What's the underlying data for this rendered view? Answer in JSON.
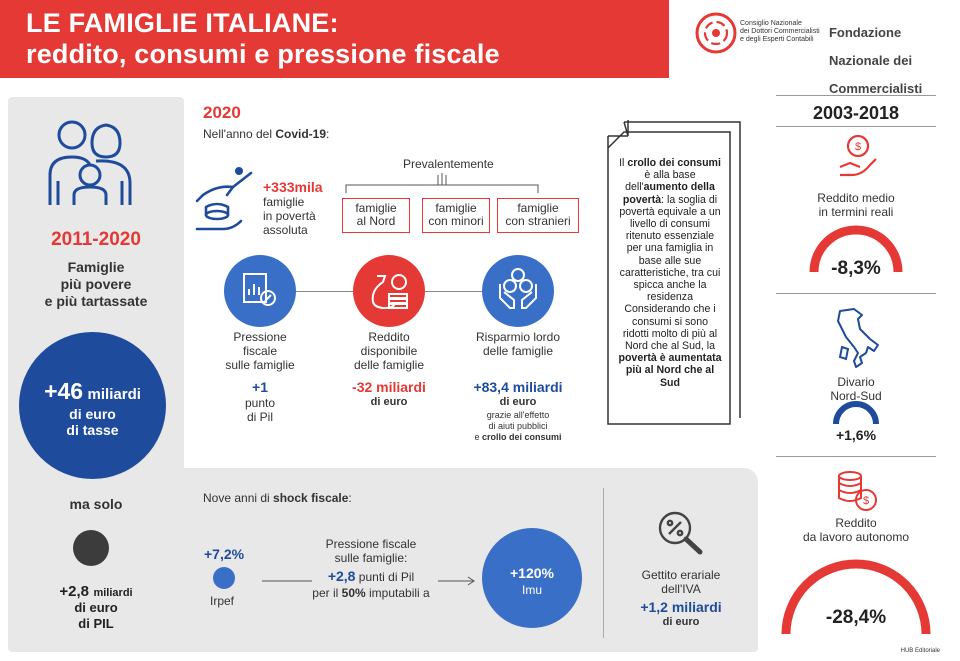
{
  "header": {
    "title_line1": "LE FAMIGLIE ITALIANE:",
    "title_line2": "reddito, consumi e pressione fiscale",
    "cndc_text": "Consiglio Nazionale\ndei Dottori Commercialisti\ne degli Esperti Contabili",
    "fnc_line1": "Fondazione",
    "fnc_line2": "Nazionale dei",
    "fnc_line3": "Commercialisti"
  },
  "left": {
    "period": "2011-2020",
    "subtitle": "Famiglie\npiù povere\ne più tartassate",
    "big_value": "+46",
    "big_unit": "miliardi",
    "big_desc": "di euro\ndi tasse",
    "ma_solo": "ma solo",
    "small_value": "+2,8",
    "small_unit": "miliardi",
    "small_desc": "di euro\ndi PIL"
  },
  "covid": {
    "year": "2020",
    "intro_prefix": "Nell'anno del ",
    "intro_bold": "Covid-19",
    "intro_suffix": ":",
    "poverty_value": "+333mila",
    "poverty_desc": "famiglie\nin povertà\nassoluta",
    "prevalentemente": "Prevalentemente",
    "categories": [
      "famiglie\nal Nord",
      "famiglie\ncon minori",
      "famiglie\ncon stranieri"
    ],
    "metrics": [
      {
        "label": "Pressione\nfiscale\nsulle famiglie",
        "value": "+1",
        "unit": "punto\ndi Pil"
      },
      {
        "label": "Reddito\ndisponibile\ndelle famiglie",
        "value": "-32 miliardi",
        "unit": "di euro"
      },
      {
        "label": "Risparmio lordo\ndelle famiglie",
        "value": "+83,4 miliardi",
        "unit": "di euro",
        "note1": "grazie all'effetto",
        "note2": "di aiuti pubblici",
        "note3_prefix": "e ",
        "note3_bold": "crollo dei consumi"
      }
    ]
  },
  "doc": {
    "t1": "Il ",
    "b1": "crollo dei consumi",
    "t2": " è alla base dell'",
    "b2": "aumento della povertà",
    "t3": ": la soglia di povertà equivale a un livello di consumi ritenuto essenziale per una famiglia in base alle sue caratteristiche, tra cui spicca anche la residenza Considerando che i consumi si sono ridotti molto di più al Nord che al Sud, la ",
    "b3": "povertà è aumentata più al Nord che al Sud"
  },
  "shock": {
    "intro_prefix": "Nove anni di ",
    "intro_bold": "shock fiscale",
    "intro_suffix": ":",
    "irpef_value": "+7,2%",
    "irpef_label": "Irpef",
    "center_l1": "Pressione fiscale",
    "center_l2": "sulle famiglie:",
    "center_value": "+2,8",
    "center_l3_rest": " punti di Pil",
    "center_l4_prefix": "per il ",
    "center_l4_bold": "50%",
    "center_l4_suffix": " imputabili a",
    "imu_value": "+120%",
    "imu_label": "Imu",
    "iva_label": "Gettito erariale\ndell'IVA",
    "iva_value": "+1,2 miliardi",
    "iva_unit": "di euro"
  },
  "right": {
    "period": "2003-2018",
    "items": [
      {
        "label": "Reddito medio\nin termini reali",
        "value": "-8,3%"
      },
      {
        "label": "Divario\nNord-Sud",
        "value": "+1,6%"
      },
      {
        "label": "Reddito\nda lavoro autonomo",
        "value": "-28,4%"
      }
    ],
    "footer": "HUB Editoriale"
  },
  "colors": {
    "red": "#e53935",
    "blue": "#1e4b9c",
    "mid_blue": "#3a6fc8",
    "grey_panel": "#e8e8e9"
  },
  "icons": [
    "family-icon",
    "hand-coin-icon",
    "tax-document-icon",
    "money-bag-icon",
    "hands-coins-icon",
    "magnifier-percent-icon",
    "hand-coin-small-icon",
    "italy-map-icon",
    "coin-stack-icon"
  ],
  "chart_data": {
    "type": "table",
    "title": "LE FAMIGLIE ITALIANE: reddito, consumi e pressione fiscale",
    "groups": [
      {
        "period": "2011-2020",
        "rows": [
          [
            "Tasse",
            "+46 miliardi di euro"
          ],
          [
            "PIL",
            "+2,8 miliardi di euro"
          ]
        ]
      },
      {
        "period": "2020",
        "rows": [
          [
            "Famiglie in povertà assoluta",
            "+333mila"
          ],
          [
            "Pressione fiscale sulle famiglie",
            "+1 punto di Pil"
          ],
          [
            "Reddito disponibile delle famiglie",
            "-32 miliardi di euro"
          ],
          [
            "Risparmio lordo delle famiglie",
            "+83,4 miliardi di euro"
          ]
        ]
      },
      {
        "period": "Nove anni di shock fiscale",
        "rows": [
          [
            "Irpef",
            "+7,2%"
          ],
          [
            "Pressione fiscale sulle famiglie",
            "+2,8 punti di Pil"
          ],
          [
            "Imu",
            "+120%"
          ],
          [
            "Gettito erariale dell'IVA",
            "+1,2 miliardi di euro"
          ]
        ]
      },
      {
        "period": "2003-2018",
        "rows": [
          [
            "Reddito medio in termini reali",
            "-8,3%"
          ],
          [
            "Divario Nord-Sud",
            "+1,6%"
          ],
          [
            "Reddito da lavoro autonomo",
            "-28,4%"
          ]
        ]
      }
    ]
  }
}
